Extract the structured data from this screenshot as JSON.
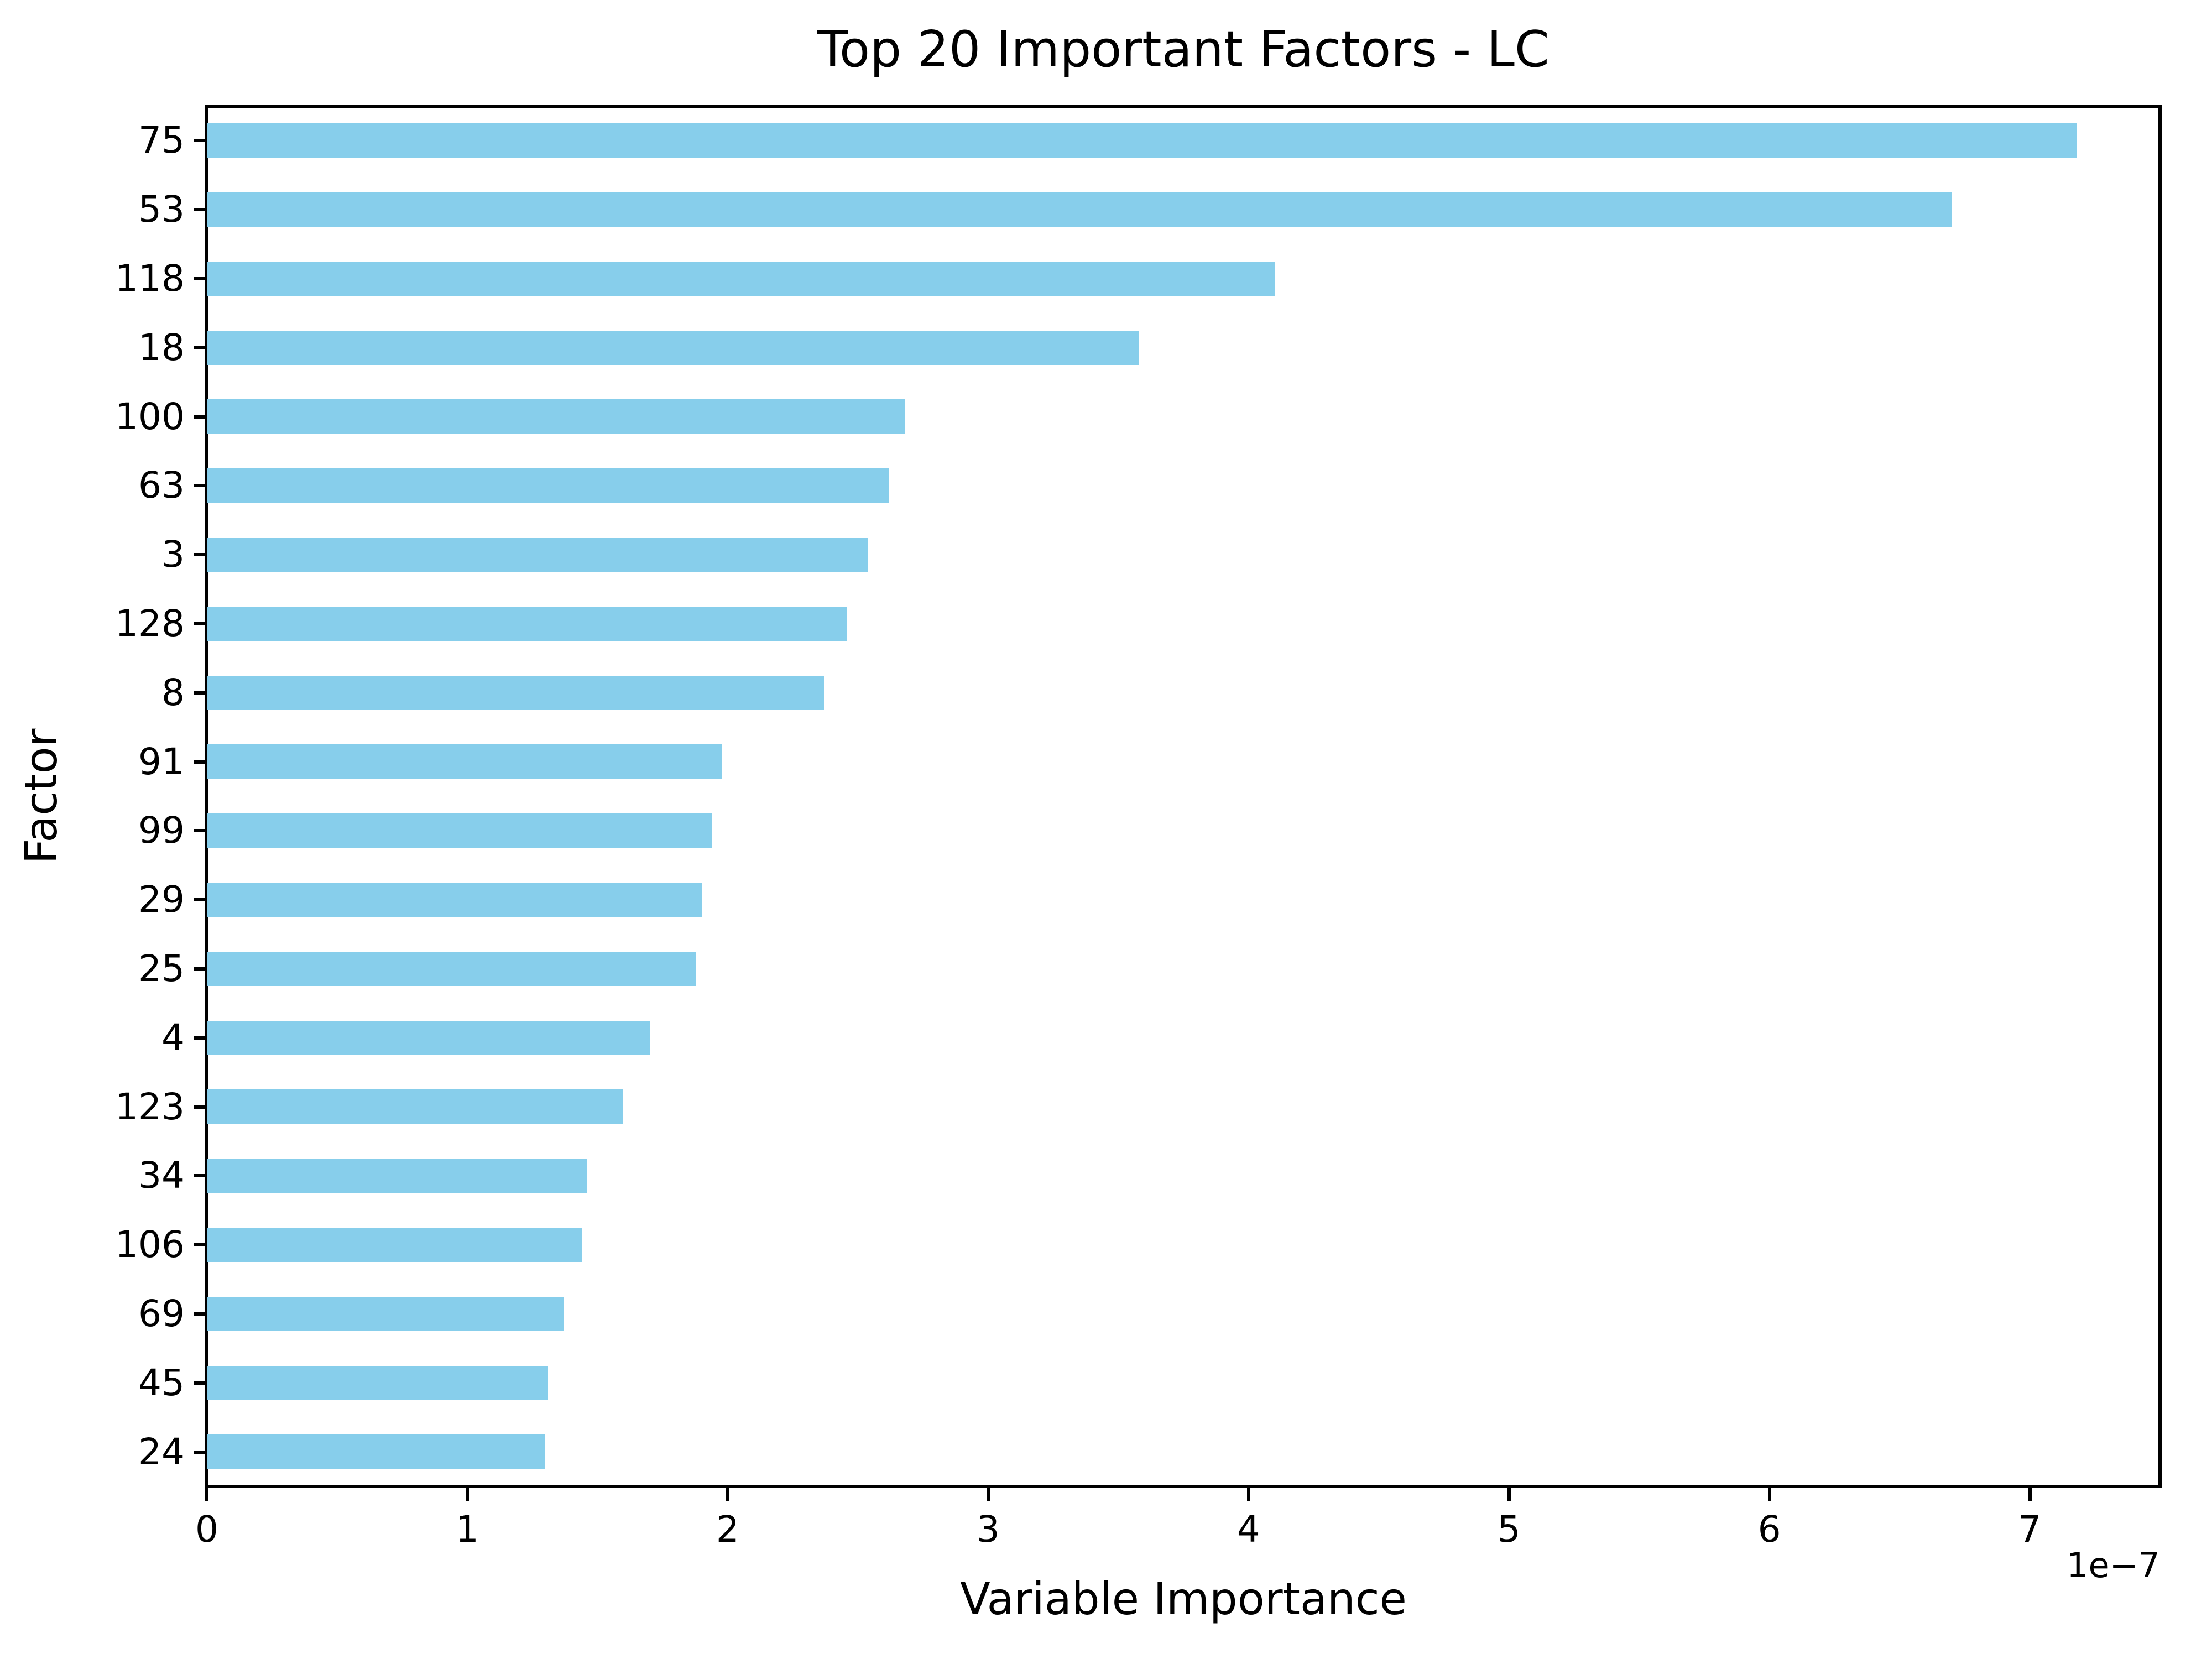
{
  "title": "Top 20 Important Factors - LC",
  "chart_data": {
    "type": "bar",
    "orientation": "horizontal",
    "title": "Top 20 Important Factors - LC",
    "xlabel": "Variable Importance",
    "ylabel": "Factor",
    "x_offset_label": "1e−7",
    "value_scale": "1e-7",
    "categories": [
      "75",
      "53",
      "118",
      "18",
      "100",
      "63",
      "3",
      "128",
      "8",
      "91",
      "99",
      "29",
      "25",
      "4",
      "123",
      "34",
      "106",
      "69",
      "45",
      "24"
    ],
    "values": [
      7.18,
      6.7,
      4.1,
      3.58,
      2.68,
      2.62,
      2.54,
      2.46,
      2.37,
      1.98,
      1.94,
      1.9,
      1.88,
      1.7,
      1.6,
      1.46,
      1.44,
      1.37,
      1.31,
      1.3
    ],
    "xlim": [
      0,
      7.5
    ],
    "xticks": [
      0,
      1,
      2,
      3,
      4,
      5,
      6,
      7
    ],
    "bar_color": "#87CEEB",
    "text_color": "#000000",
    "background_color": "#ffffff",
    "grid": false,
    "legend": null
  }
}
